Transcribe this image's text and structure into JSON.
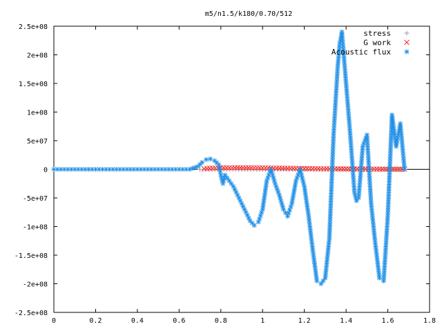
{
  "chart_data": {
    "type": "scatter",
    "title": "m5/n1.5/k180/0.70/512",
    "xlim": [
      0,
      1.8
    ],
    "ylim": [
      -250000000,
      250000000
    ],
    "x_ticks": [
      0,
      0.2,
      0.4,
      0.6,
      0.8,
      1,
      1.2,
      1.4,
      1.6,
      1.8
    ],
    "x_tick_labels": [
      "0",
      "0.2",
      "0.4",
      "0.6",
      "0.8",
      "1",
      "1.2",
      "1.4",
      "1.6",
      "1.8"
    ],
    "y_ticks": [
      250000000,
      200000000,
      150000000,
      100000000,
      50000000,
      0,
      -50000000,
      -100000000,
      -150000000,
      -200000000,
      -250000000
    ],
    "y_tick_labels": [
      "2.5e+08",
      "2e+08",
      "1.5e+08",
      "1e+08",
      "5e+07",
      "0",
      "-5e+07",
      "-1e+08",
      "-1.5e+08",
      "-2e+08",
      "-2.5e+08"
    ],
    "legend_position": "top-right",
    "series": [
      {
        "name": "stress",
        "marker": "plus",
        "color": "#9a9a9a",
        "x": [
          0.7,
          0.8,
          0.9,
          1.0,
          1.1,
          1.2,
          1.3,
          1.4,
          1.5,
          1.6,
          1.68
        ],
        "y": [
          0,
          0,
          0,
          0,
          0,
          0,
          0,
          0,
          0,
          0,
          0
        ]
      },
      {
        "name": "G work",
        "marker": "cross",
        "color": "#ff2020",
        "x": [
          0.72,
          0.76,
          0.8,
          0.84,
          0.88,
          0.92,
          0.96,
          1.0,
          1.04,
          1.08,
          1.12,
          1.16,
          1.2,
          1.24,
          1.28,
          1.32,
          1.36,
          1.4,
          1.44,
          1.48,
          1.52,
          1.56,
          1.6,
          1.64,
          1.68
        ],
        "y": [
          1000000,
          2000000,
          2500000,
          2600000,
          2700000,
          2600000,
          2500000,
          2400000,
          2200000,
          2000000,
          1800000,
          1600000,
          1400000,
          1200000,
          1000000,
          900000,
          800000,
          700000,
          600000,
          500000,
          400000,
          300000,
          200000,
          150000,
          100000
        ]
      },
      {
        "name": "Acoustic flux",
        "marker": "star",
        "color": "#1f8fe6",
        "x": [
          0.0,
          0.05,
          0.1,
          0.15,
          0.2,
          0.25,
          0.3,
          0.35,
          0.4,
          0.45,
          0.5,
          0.55,
          0.6,
          0.65,
          0.69,
          0.71,
          0.73,
          0.75,
          0.77,
          0.79,
          0.8,
          0.81,
          0.82,
          0.84,
          0.86,
          0.88,
          0.9,
          0.92,
          0.94,
          0.96,
          0.98,
          1.0,
          1.02,
          1.04,
          1.06,
          1.08,
          1.1,
          1.12,
          1.14,
          1.16,
          1.18,
          1.2,
          1.22,
          1.24,
          1.26,
          1.28,
          1.3,
          1.32,
          1.34,
          1.36,
          1.37,
          1.38,
          1.4,
          1.42,
          1.44,
          1.45,
          1.46,
          1.48,
          1.5,
          1.52,
          1.54,
          1.56,
          1.58,
          1.6,
          1.62,
          1.64,
          1.66,
          1.68
        ],
        "y": [
          0,
          0,
          0,
          0,
          0,
          0,
          0,
          0,
          0,
          0,
          0,
          0,
          0,
          0,
          5000000,
          12000000,
          17000000,
          18000000,
          15000000,
          8000000,
          -10000000,
          -25000000,
          -10000000,
          -20000000,
          -30000000,
          -45000000,
          -60000000,
          -75000000,
          -90000000,
          -98000000,
          -92000000,
          -70000000,
          -20000000,
          0,
          -25000000,
          -45000000,
          -70000000,
          -82000000,
          -60000000,
          -20000000,
          0,
          -30000000,
          -80000000,
          -140000000,
          -195000000,
          -200000000,
          -190000000,
          -120000000,
          60000000,
          180000000,
          220000000,
          240000000,
          150000000,
          60000000,
          -40000000,
          -55000000,
          -50000000,
          40000000,
          60000000,
          -60000000,
          -130000000,
          -190000000,
          -195000000,
          -80000000,
          95000000,
          40000000,
          80000000,
          0
        ]
      }
    ]
  }
}
